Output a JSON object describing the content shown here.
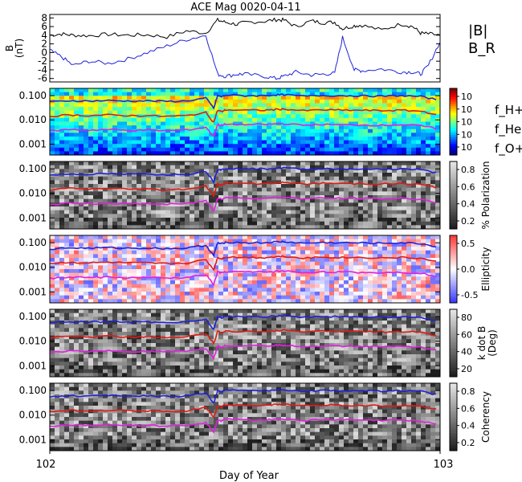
{
  "title": "ACE Mag 0020-04-11",
  "colors": {
    "magnitude": "#000000",
    "br": "#1e22d8",
    "h_plus": "#1e22d8",
    "he_plus": "#e01a14",
    "o_plus": "#e020e0"
  },
  "chart_data": [
    {
      "type": "line",
      "panel": "magnetic-field",
      "ylabel_lines": [
        "B",
        "(nT)"
      ],
      "yticks": [
        "8",
        "6",
        "4",
        "2",
        "0",
        "-2",
        "-4",
        "-6"
      ],
      "ylim": [
        -6.8,
        8.8
      ],
      "xlim": [
        102,
        103
      ],
      "series": [
        {
          "name": "|B|",
          "color": "#000000",
          "x": [
            102.0,
            102.03,
            102.06,
            102.1,
            102.15,
            102.2,
            102.25,
            102.3,
            102.35,
            102.4,
            102.43,
            102.45,
            102.48,
            102.5,
            102.55,
            102.58,
            102.6,
            102.63,
            102.67,
            102.7,
            102.73,
            102.75,
            102.78,
            102.8,
            102.85,
            102.9,
            102.93,
            102.95,
            102.97,
            103.0
          ],
          "values": [
            4.0,
            4.3,
            4.0,
            3.9,
            4.2,
            4.0,
            4.1,
            3.6,
            5.0,
            4.5,
            7.5,
            7.0,
            6.5,
            7.0,
            7.2,
            7.6,
            7.5,
            6.0,
            7.3,
            6.9,
            7.0,
            5.5,
            6.2,
            6.3,
            5.2,
            6.6,
            6.0,
            4.5,
            4.3,
            4.0
          ]
        },
        {
          "name": "B_R",
          "color": "#1e22d8",
          "x": [
            102.0,
            102.03,
            102.06,
            102.1,
            102.15,
            102.2,
            102.25,
            102.3,
            102.35,
            102.4,
            102.43,
            102.45,
            102.48,
            102.5,
            102.55,
            102.58,
            102.6,
            102.63,
            102.67,
            102.7,
            102.73,
            102.75,
            102.78,
            102.8,
            102.85,
            102.9,
            102.93,
            102.95,
            102.97,
            103.0
          ],
          "values": [
            0.5,
            -1.0,
            -3.0,
            -2.0,
            -2.5,
            -1.5,
            0.0,
            1.5,
            3.0,
            4.0,
            -5.0,
            -5.5,
            -5.0,
            -5.0,
            -5.5,
            -6.0,
            -5.5,
            -4.5,
            -5.2,
            -5.0,
            -4.8,
            3.5,
            -4.0,
            -4.2,
            -3.8,
            -4.5,
            -4.5,
            -5.0,
            -3.0,
            2.5
          ]
        }
      ],
      "legend": [
        "|B|",
        "B_R"
      ]
    },
    {
      "type": "heatmap",
      "panel": "power-spectrum",
      "yticks": [
        "0.100",
        "0.010",
        "0.001"
      ],
      "ylog": true,
      "colorbar_ticks": [
        "10",
        "10",
        "10",
        "10",
        "10"
      ],
      "legend": [
        "f_H+",
        "f_He+",
        "f_O+"
      ]
    },
    {
      "type": "heatmap",
      "panel": "polarization",
      "yticks": [
        "0.100",
        "0.010",
        "0.001"
      ],
      "ylog": true,
      "colorbar_label": "% Polarization",
      "colorbar_ticks": [
        "0.8",
        "0.6",
        "0.4",
        "0.2"
      ]
    },
    {
      "type": "heatmap",
      "panel": "ellipticity",
      "yticks": [
        "0.100",
        "0.010",
        "0.001"
      ],
      "ylog": true,
      "colorbar_label": "Ellipticity",
      "colorbar_ticks": [
        "0.5",
        "0.0",
        "-0.5"
      ]
    },
    {
      "type": "heatmap",
      "panel": "k-dot-b",
      "yticks": [
        "0.100",
        "0.010",
        "0.001"
      ],
      "ylog": true,
      "colorbar_label_lines": [
        "k dot B",
        "(Deg)"
      ],
      "colorbar_ticks": [
        "80",
        "60",
        "40",
        "20"
      ]
    },
    {
      "type": "heatmap",
      "panel": "coherency",
      "yticks": [
        "0.100",
        "0.010",
        "0.001"
      ],
      "ylog": true,
      "colorbar_label": "Coherency",
      "colorbar_ticks": [
        "0.8",
        "0.6",
        "0.4",
        "0.2"
      ]
    }
  ],
  "gyrofrequency_lines": {
    "x": [
      102.0,
      102.05,
      102.1,
      102.15,
      102.2,
      102.25,
      102.3,
      102.35,
      102.4,
      102.42,
      102.43,
      102.44,
      102.45,
      102.5,
      102.55,
      102.58,
      102.6,
      102.65,
      102.7,
      102.75,
      102.8,
      102.85,
      102.9,
      102.95,
      103.0
    ],
    "f_H+": [
      0.055,
      0.062,
      0.06,
      0.063,
      0.06,
      0.061,
      0.058,
      0.06,
      0.08,
      0.03,
      0.1,
      0.09,
      0.105,
      0.1,
      0.1,
      0.108,
      0.11,
      0.095,
      0.102,
      0.1,
      0.098,
      0.095,
      0.1,
      0.092,
      0.065
    ],
    "f_He+": [
      0.014,
      0.016,
      0.015,
      0.016,
      0.015,
      0.015,
      0.014,
      0.015,
      0.02,
      0.008,
      0.025,
      0.022,
      0.026,
      0.025,
      0.025,
      0.027,
      0.028,
      0.024,
      0.026,
      0.025,
      0.025,
      0.024,
      0.025,
      0.023,
      0.016
    ],
    "f_O+": [
      0.0035,
      0.004,
      0.0038,
      0.004,
      0.0037,
      0.0038,
      0.0036,
      0.0038,
      0.005,
      0.002,
      0.0065,
      0.0058,
      0.0067,
      0.0064,
      0.0064,
      0.0068,
      0.007,
      0.006,
      0.0065,
      0.0063,
      0.0062,
      0.006,
      0.0063,
      0.0058,
      0.004
    ]
  },
  "x_axis": {
    "label": "Day of Year",
    "ticks": [
      "102",
      "103"
    ]
  }
}
